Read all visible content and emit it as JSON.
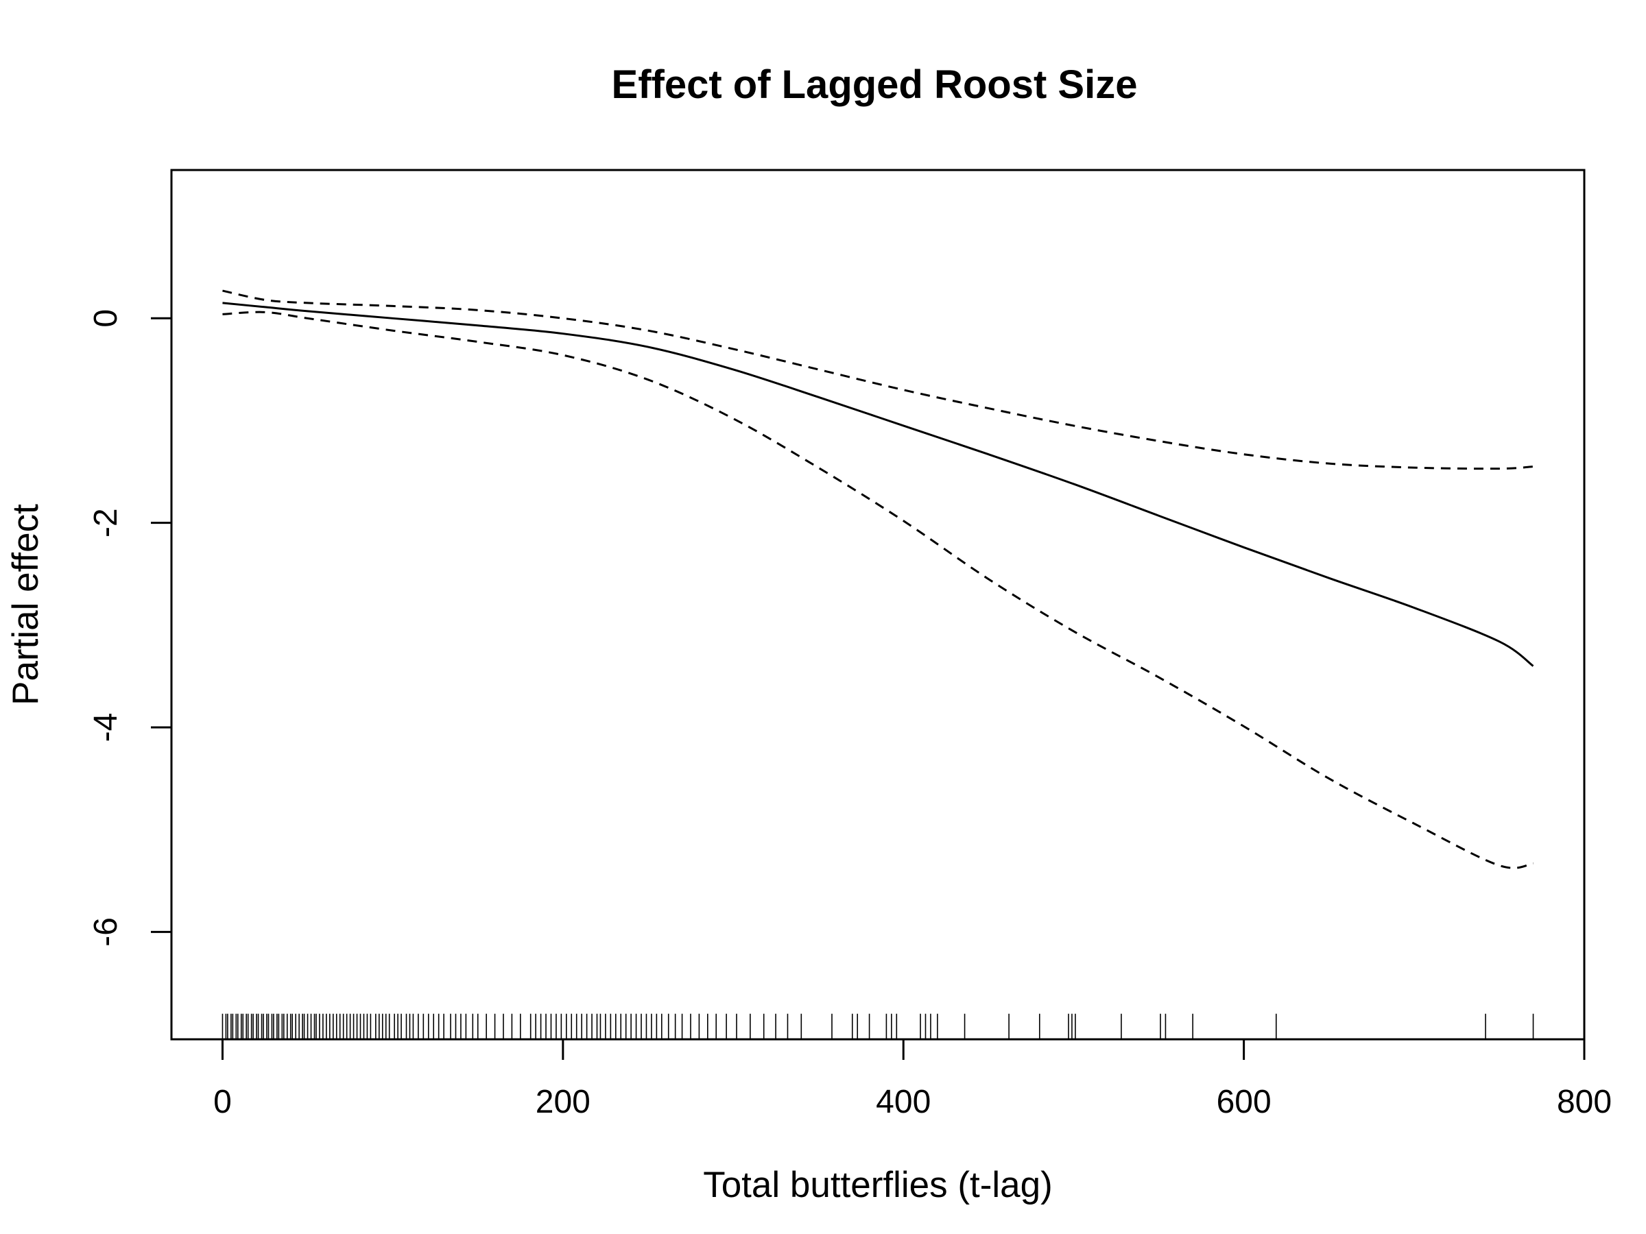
{
  "chart_data": {
    "type": "line",
    "title": "Effect of Lagged Roost Size",
    "xlabel": "Total butterflies (t-lag)",
    "ylabel": "Partial effect",
    "xlim": [
      -30,
      800
    ],
    "ylim": [
      -7.05,
      1.45
    ],
    "x_ticks": [
      0,
      200,
      400,
      600,
      800
    ],
    "y_ticks": [
      0,
      -2,
      -4,
      -6
    ],
    "x_tick_labels": [
      "0",
      "200",
      "400",
      "600",
      "800"
    ],
    "y_tick_labels": [
      "0",
      "-2",
      "-4",
      "-6"
    ],
    "grid": false,
    "legend": "none",
    "x": [
      0,
      25,
      50,
      100,
      150,
      200,
      250,
      300,
      350,
      400,
      450,
      500,
      550,
      600,
      650,
      700,
      750,
      770
    ],
    "series": [
      {
        "role": "fit",
        "line": "solid",
        "values": [
          0.15,
          0.11,
          0.07,
          0.0,
          -0.07,
          -0.15,
          -0.28,
          -0.5,
          -0.77,
          -1.05,
          -1.33,
          -1.62,
          -1.93,
          -2.24,
          -2.54,
          -2.83,
          -3.16,
          -3.4
        ]
      },
      {
        "role": "upper",
        "line": "dashed",
        "values": [
          0.27,
          0.18,
          0.15,
          0.12,
          0.08,
          0.0,
          -0.12,
          -0.3,
          -0.5,
          -0.7,
          -0.88,
          -1.05,
          -1.2,
          -1.33,
          -1.42,
          -1.46,
          -1.47,
          -1.45
        ]
      },
      {
        "role": "lower",
        "line": "dashed",
        "values": [
          0.04,
          0.06,
          0.0,
          -0.12,
          -0.23,
          -0.36,
          -0.6,
          -0.98,
          -1.46,
          -1.98,
          -2.55,
          -3.06,
          -3.51,
          -3.99,
          -4.5,
          -4.94,
          -5.35,
          -5.33
        ]
      }
    ],
    "rug": [
      0,
      2,
      3,
      5,
      6,
      8,
      9,
      11,
      12,
      14,
      15,
      17,
      18,
      20,
      21,
      23,
      24,
      26,
      27,
      29,
      30,
      32,
      33,
      35,
      36,
      38,
      40,
      41,
      43,
      45,
      47,
      48,
      50,
      52,
      54,
      55,
      57,
      59,
      61,
      63,
      65,
      67,
      69,
      71,
      73,
      75,
      77,
      79,
      81,
      83,
      85,
      87,
      90,
      92,
      94,
      96,
      98,
      101,
      103,
      105,
      108,
      110,
      112,
      115,
      118,
      121,
      124,
      127,
      130,
      134,
      137,
      140,
      143,
      147,
      150,
      155,
      160,
      165,
      170,
      175,
      181,
      184,
      187,
      190,
      193,
      196,
      199,
      202,
      205,
      208,
      211,
      214,
      217,
      220,
      222,
      225,
      228,
      231,
      234,
      237,
      240,
      243,
      246,
      249,
      252,
      255,
      258,
      262,
      266,
      270,
      275,
      280,
      285,
      290,
      296,
      302,
      310,
      318,
      325,
      332,
      340,
      358,
      370,
      373,
      380,
      390,
      393,
      396,
      410,
      413,
      416,
      420,
      436,
      462,
      480,
      497,
      499,
      501,
      528,
      551,
      554,
      570,
      619,
      742,
      770
    ]
  }
}
